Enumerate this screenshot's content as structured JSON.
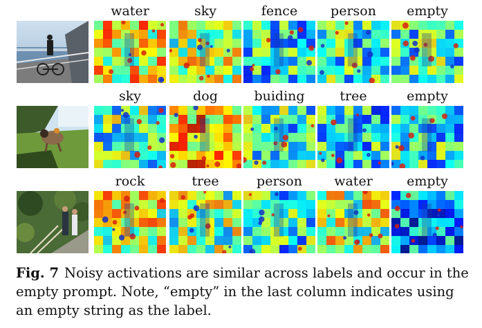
{
  "rows": [
    {
      "photo": "pier-cyclist-photo",
      "labels": [
        "water",
        "sky",
        "fence",
        "person",
        "empty"
      ]
    },
    {
      "photo": "dog-on-grass-photo",
      "labels": [
        "sky",
        "dog",
        "buiding",
        "tree",
        "empty"
      ]
    },
    {
      "photo": "garden-steps-people-photo",
      "labels": [
        "rock",
        "tree",
        "person",
        "water",
        "empty"
      ]
    }
  ],
  "caption": {
    "fig_label": "Fig. 7",
    "text": "Noisy activations are similar across labels and occur in the empty prompt. Note, “empty” in the last column indicates using an empty string as the label."
  }
}
